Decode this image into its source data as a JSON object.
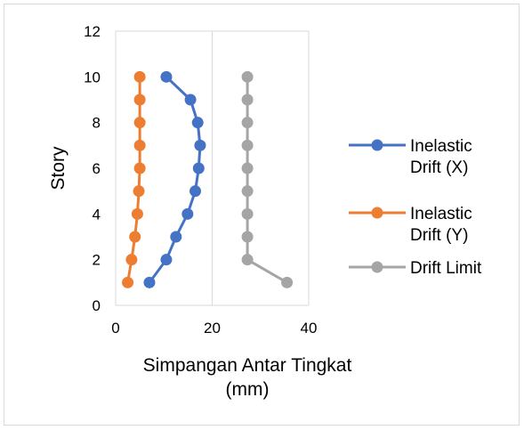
{
  "chart_data": {
    "type": "line",
    "xlabel_lines": [
      "Simpangan Antar Tingkat",
      "(mm)"
    ],
    "ylabel": "Story",
    "xlim": [
      0,
      40
    ],
    "ylim": [
      0,
      12
    ],
    "x_ticks": [
      0,
      20,
      40
    ],
    "y_ticks": [
      0,
      2,
      4,
      6,
      8,
      10,
      12
    ],
    "grid": "vertical",
    "legend_position": "right",
    "series": [
      {
        "name_lines": [
          "Inelastic",
          "Drift (X)"
        ],
        "color": "#4472c4",
        "points": [
          {
            "x": 7.0,
            "y": 1
          },
          {
            "x": 10.5,
            "y": 2
          },
          {
            "x": 12.5,
            "y": 3
          },
          {
            "x": 14.9,
            "y": 4
          },
          {
            "x": 16.5,
            "y": 5
          },
          {
            "x": 17.2,
            "y": 6
          },
          {
            "x": 17.5,
            "y": 7
          },
          {
            "x": 17.0,
            "y": 8
          },
          {
            "x": 15.5,
            "y": 9
          },
          {
            "x": 10.5,
            "y": 10
          }
        ]
      },
      {
        "name_lines": [
          "Inelastic",
          "Drift (Y)"
        ],
        "color": "#ed7d31",
        "points": [
          {
            "x": 2.5,
            "y": 1
          },
          {
            "x": 3.3,
            "y": 2
          },
          {
            "x": 4.0,
            "y": 3
          },
          {
            "x": 4.5,
            "y": 4
          },
          {
            "x": 4.8,
            "y": 5
          },
          {
            "x": 5.0,
            "y": 6
          },
          {
            "x": 5.0,
            "y": 7
          },
          {
            "x": 5.0,
            "y": 8
          },
          {
            "x": 5.0,
            "y": 9
          },
          {
            "x": 5.0,
            "y": 10
          }
        ]
      },
      {
        "name_lines": [
          "Drift Limit"
        ],
        "color": "#a5a5a5",
        "points": [
          {
            "x": 35.5,
            "y": 1
          },
          {
            "x": 27.3,
            "y": 2
          },
          {
            "x": 27.3,
            "y": 3
          },
          {
            "x": 27.3,
            "y": 4
          },
          {
            "x": 27.3,
            "y": 5
          },
          {
            "x": 27.3,
            "y": 6
          },
          {
            "x": 27.3,
            "y": 7
          },
          {
            "x": 27.3,
            "y": 8
          },
          {
            "x": 27.3,
            "y": 9
          },
          {
            "x": 27.3,
            "y": 10
          }
        ]
      }
    ]
  }
}
